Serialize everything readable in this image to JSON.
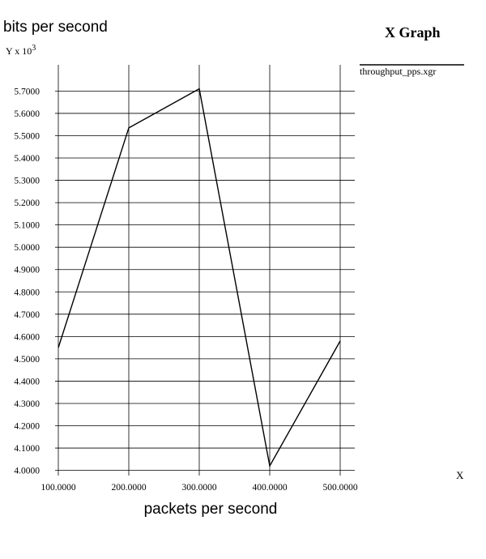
{
  "window": {
    "graph_title": "X Graph",
    "y_multiplier_prefix": "Y x 10",
    "y_multiplier_exponent": "3",
    "x_axis_letter": "X",
    "legend_file": "throughput_pps.xgr"
  },
  "chart_data": {
    "type": "line",
    "ylabel": "bits per second",
    "xlabel": "packets per second",
    "x_ticks": [
      "100.0000",
      "200.0000",
      "300.0000",
      "400.0000",
      "500.0000"
    ],
    "y_ticks": [
      "4.0000",
      "4.1000",
      "4.2000",
      "4.3000",
      "4.4000",
      "4.5000",
      "4.6000",
      "4.7000",
      "4.8000",
      "4.9000",
      "5.0000",
      "5.1000",
      "5.2000",
      "5.3000",
      "5.4000",
      "5.5000",
      "5.6000",
      "5.7000"
    ],
    "xlim": [
      100,
      500
    ],
    "ylim": [
      3.995,
      5.745
    ],
    "grid": true,
    "series": [
      {
        "name": "throughput_pps.xgr",
        "color": "#000000",
        "x": [
          100,
          200,
          300,
          400,
          500
        ],
        "y": [
          4.55,
          5.535,
          5.71,
          4.02,
          4.58
        ]
      }
    ]
  }
}
